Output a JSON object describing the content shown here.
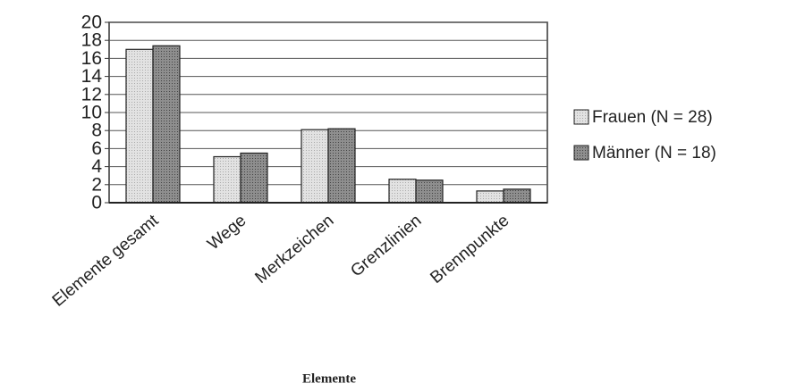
{
  "chart_data": {
    "type": "bar",
    "x_label": "Elemente",
    "categories": [
      "Elemente gesamt",
      "Wege",
      "Merkzeichen",
      "Grenzlinien",
      "Brennpunkte"
    ],
    "series": [
      {
        "name": "Frauen (N = 28)",
        "color": "#dcdcdc",
        "values": [
          17,
          5.1,
          8.1,
          2.6,
          1.3
        ]
      },
      {
        "name": "Männer (N = 18)",
        "color": "#9a9a9a",
        "values": [
          17.4,
          5.5,
          8.2,
          2.5,
          1.5
        ]
      }
    ],
    "ylim": [
      0,
      20
    ],
    "yticks": [
      0,
      2,
      4,
      6,
      8,
      10,
      12,
      14,
      16,
      18,
      20
    ],
    "grid": true,
    "legend": "right"
  }
}
